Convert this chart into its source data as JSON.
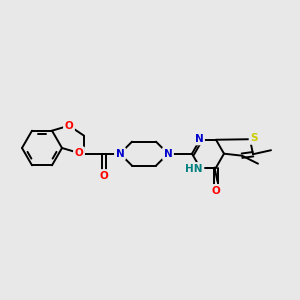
{
  "bg_color": "#e8e8e8",
  "bond_color": "#000000",
  "atom_colors": {
    "O": "#ff0000",
    "N": "#0000cc",
    "S": "#cccc00",
    "NH": "#008080",
    "C": "#000000"
  },
  "figsize": [
    3.0,
    3.0
  ],
  "dpi": 100,
  "lw": 1.4
}
